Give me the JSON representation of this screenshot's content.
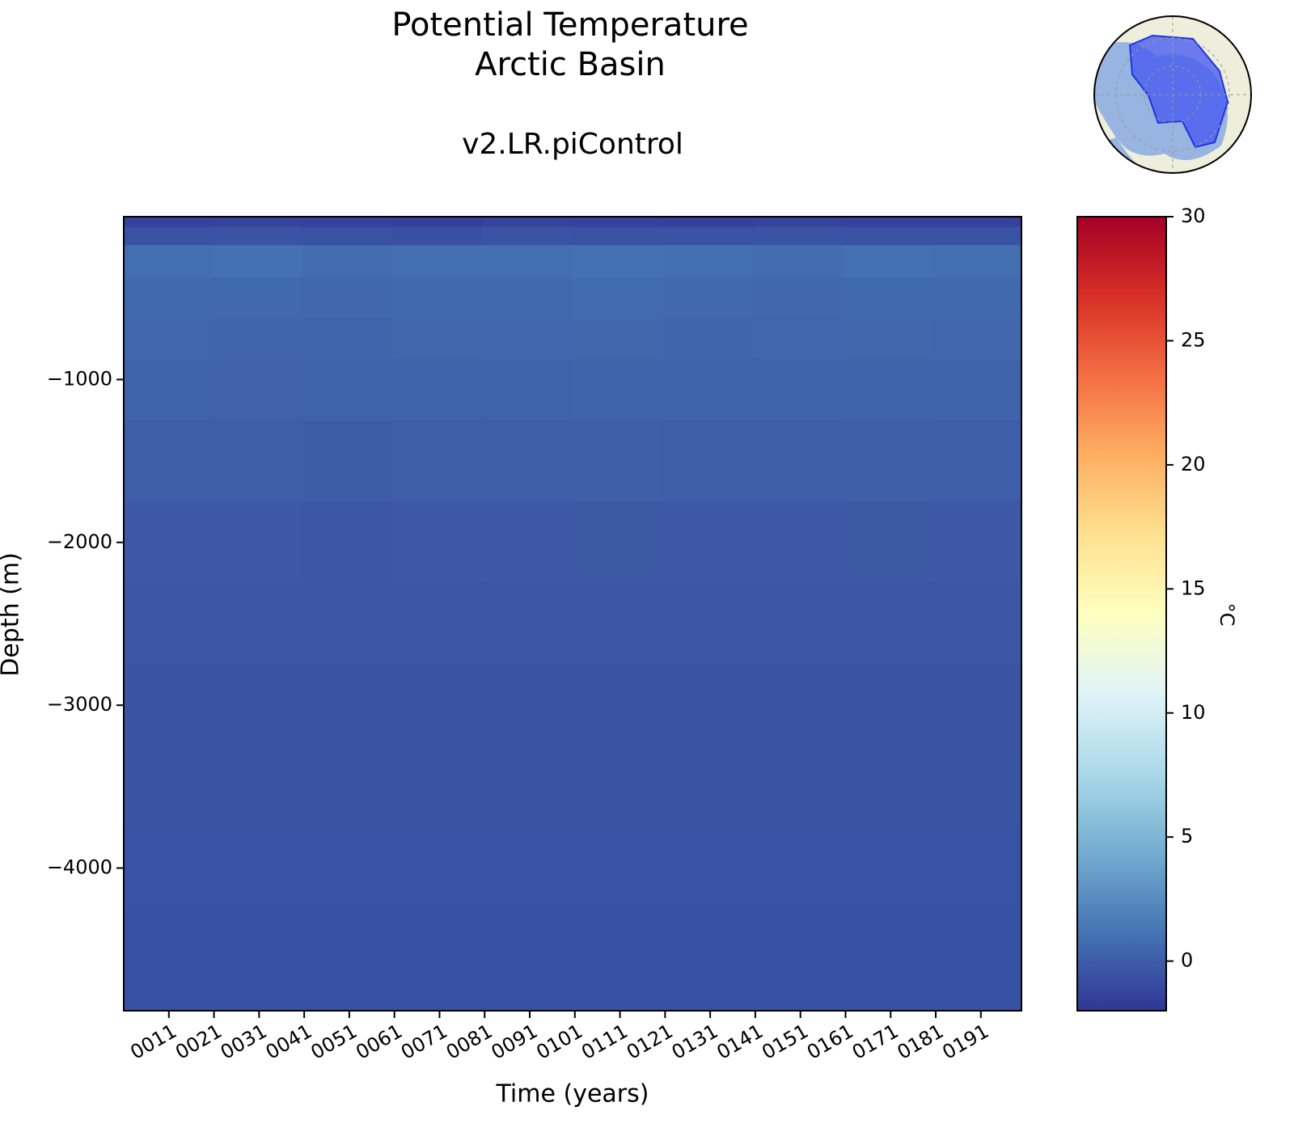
{
  "chart_data": {
    "type": "heatmap",
    "title": [
      "Potential Temperature",
      "Arctic Basin"
    ],
    "subtitle": "v2.LR.piControl",
    "xlabel": "Time (years)",
    "ylabel": "Depth (m)",
    "colorbar_label": "°C",
    "x": [
      10.5,
      30.5,
      50.5,
      70.5,
      90.5,
      110.5,
      130.5,
      150.5,
      170.5,
      190.5
    ],
    "y": [
      -25,
      -100,
      -250,
      -500,
      -750,
      -1000,
      -1500,
      -2000,
      -2500,
      -3000,
      -3500,
      -4000,
      -4500
    ],
    "values": [
      [
        -1.4,
        -1.3,
        -1.4,
        -1.5,
        -1.3,
        -1.4,
        -1.5,
        -1.3,
        -1.4,
        -1.4
      ],
      [
        -0.6,
        -0.5,
        -0.6,
        -0.7,
        -0.5,
        -0.6,
        -0.6,
        -0.5,
        -0.6,
        -0.6
      ],
      [
        0.9,
        1.0,
        0.8,
        0.9,
        0.9,
        1.0,
        0.9,
        0.8,
        1.0,
        0.9
      ],
      [
        0.6,
        0.6,
        0.5,
        0.6,
        0.6,
        0.7,
        0.6,
        0.5,
        0.6,
        0.6
      ],
      [
        0.45,
        0.4,
        0.4,
        0.5,
        0.45,
        0.5,
        0.4,
        0.45,
        0.5,
        0.45
      ],
      [
        0.3,
        0.25,
        0.3,
        0.3,
        0.3,
        0.35,
        0.3,
        0.3,
        0.35,
        0.3
      ],
      [
        0.05,
        0.05,
        0.0,
        0.05,
        0.05,
        0.1,
        0.05,
        0.05,
        0.1,
        0.05
      ],
      [
        -0.25,
        -0.25,
        -0.3,
        -0.25,
        -0.25,
        -0.2,
        -0.25,
        -0.25,
        -0.2,
        -0.25
      ],
      [
        -0.4,
        -0.4,
        -0.4,
        -0.4,
        -0.4,
        -0.35,
        -0.4,
        -0.4,
        -0.4,
        -0.4
      ],
      [
        -0.5,
        -0.5,
        -0.5,
        -0.5,
        -0.5,
        -0.5,
        -0.5,
        -0.5,
        -0.5,
        -0.5
      ],
      [
        -0.55,
        -0.55,
        -0.55,
        -0.55,
        -0.55,
        -0.55,
        -0.55,
        -0.55,
        -0.55,
        -0.55
      ],
      [
        -0.6,
        -0.6,
        -0.6,
        -0.6,
        -0.6,
        -0.6,
        -0.6,
        -0.6,
        -0.6,
        -0.6
      ],
      [
        -0.65,
        -0.65,
        -0.65,
        -0.65,
        -0.65,
        -0.65,
        -0.65,
        -0.65,
        -0.65,
        -0.65
      ]
    ],
    "xlim": [
      1,
      200
    ],
    "ylim": [
      -4876,
      0
    ],
    "xticks": [
      {
        "value": 11,
        "label": "0011"
      },
      {
        "value": 21,
        "label": "0021"
      },
      {
        "value": 31,
        "label": "0031"
      },
      {
        "value": 41,
        "label": "0041"
      },
      {
        "value": 51,
        "label": "0051"
      },
      {
        "value": 61,
        "label": "0061"
      },
      {
        "value": 71,
        "label": "0071"
      },
      {
        "value": 81,
        "label": "0081"
      },
      {
        "value": 91,
        "label": "0091"
      },
      {
        "value": 101,
        "label": "0101"
      },
      {
        "value": 111,
        "label": "0111"
      },
      {
        "value": 121,
        "label": "0121"
      },
      {
        "value": 131,
        "label": "0131"
      },
      {
        "value": 141,
        "label": "0141"
      },
      {
        "value": 151,
        "label": "0151"
      },
      {
        "value": 161,
        "label": "0161"
      },
      {
        "value": 171,
        "label": "0171"
      },
      {
        "value": 181,
        "label": "0181"
      },
      {
        "value": 191,
        "label": "0191"
      }
    ],
    "yticks": [
      {
        "value": -1000,
        "label": "−1000"
      },
      {
        "value": -2000,
        "label": "−2000"
      },
      {
        "value": -3000,
        "label": "−3000"
      },
      {
        "value": -4000,
        "label": "−4000"
      }
    ],
    "clim": [
      -2,
      30
    ],
    "cticks": [
      0,
      5,
      10,
      15,
      20,
      25,
      30
    ],
    "colormap": [
      "#313695",
      "#4575b4",
      "#74add1",
      "#abd9e9",
      "#e0f3f8",
      "#ffffbf",
      "#fee090",
      "#fdae61",
      "#f46d43",
      "#d73027",
      "#a50026"
    ]
  }
}
